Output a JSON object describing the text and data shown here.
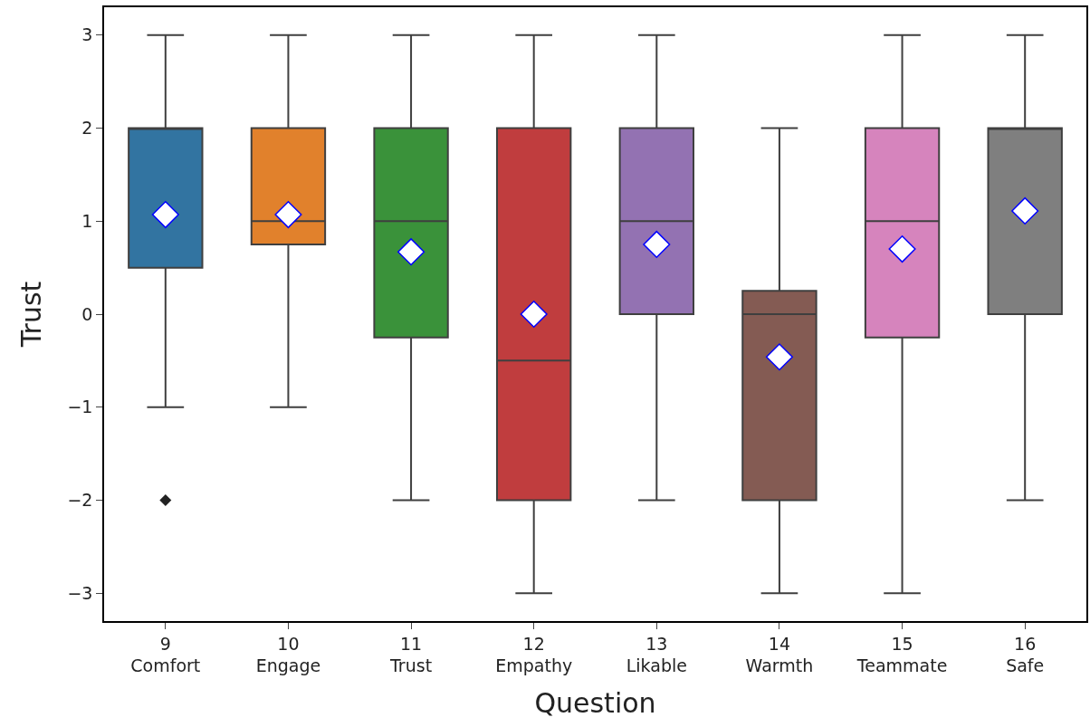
{
  "chart_data": {
    "type": "box",
    "xlabel": "Question",
    "ylabel": "Trust",
    "categories": [
      "9\nComfort",
      "10\nEngage",
      "11\nTrust",
      "12\nEmpathy",
      "13\nLikable",
      "14\nWarmth",
      "15\nTeammate",
      "16\nSafe"
    ],
    "colors": [
      "#3274a1",
      "#e1812c",
      "#3a923a",
      "#c03d3e",
      "#9372b2",
      "#845b53",
      "#d684bd",
      "#7f7f7f"
    ],
    "boxes": [
      {
        "low": -1,
        "q1": 0.5,
        "median": 2,
        "q3": 2,
        "high": 3,
        "mean": 1.07,
        "outliers": [
          -2
        ]
      },
      {
        "low": -1,
        "q1": 0.75,
        "median": 1,
        "q3": 2,
        "high": 3,
        "mean": 1.07
      },
      {
        "low": -2,
        "q1": -0.25,
        "median": 1,
        "q3": 2,
        "high": 3,
        "mean": 0.67
      },
      {
        "low": -3,
        "q1": -2,
        "median": -0.5,
        "q3": 2,
        "high": 3,
        "mean": 0
      },
      {
        "low": -2,
        "q1": 0,
        "median": 1,
        "q3": 2,
        "high": 3,
        "mean": 0.75
      },
      {
        "low": -3,
        "q1": -2,
        "median": 0,
        "q3": 0.25,
        "high": 2,
        "mean": -0.46
      },
      {
        "low": -3,
        "q1": -0.25,
        "median": 1,
        "q3": 2,
        "high": 3,
        "mean": 0.7
      },
      {
        "low": -2,
        "q1": 0,
        "median": 2,
        "q3": 2,
        "high": 3,
        "mean": 1.11
      }
    ],
    "marker": "diamond",
    "ylim": [
      -3.3,
      3.3
    ],
    "yticks": [
      {
        "value": -3,
        "label": "−3"
      },
      {
        "value": -2,
        "label": "−2"
      },
      {
        "value": -1,
        "label": "−1"
      },
      0,
      1,
      2,
      3
    ],
    "grid": false
  }
}
